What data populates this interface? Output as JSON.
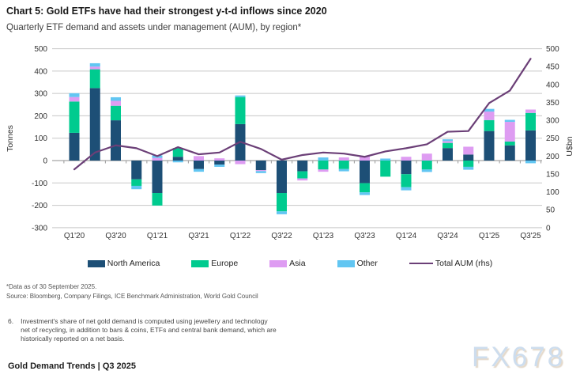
{
  "header": {
    "title": "Chart 5: Gold ETFs have had their strongest y-t-d inflows since 2020",
    "subtitle": "Quarterly ETF demand and assets under management (AUM), by region*"
  },
  "chart_data": {
    "type": "bar",
    "stacked": true,
    "grid": true,
    "legend_position": "bottom",
    "categories": [
      "Q1'20",
      "Q2'20",
      "Q3'20",
      "Q4'20",
      "Q1'21",
      "Q2'21",
      "Q3'21",
      "Q4'21",
      "Q1'22",
      "Q2'22",
      "Q3'22",
      "Q4'22",
      "Q1'23",
      "Q2'23",
      "Q3'23",
      "Q4'23",
      "Q1'24",
      "Q2'24",
      "Q3'24",
      "Q4'24",
      "Q1'25",
      "Q2'25",
      "Q3'25"
    ],
    "x_tick_labels": [
      "Q1'20",
      "Q3'20",
      "Q1'21",
      "Q3'21",
      "Q1'22",
      "Q3'22",
      "Q1'23",
      "Q3'23",
      "Q1'24",
      "Q3'24",
      "Q1'25",
      "Q3'25"
    ],
    "series": [
      {
        "name": "North America",
        "color": "#1d4f76",
        "values": [
          124,
          324,
          180,
          -84,
          -145,
          17,
          -38,
          -18,
          163,
          -43,
          -145,
          -48,
          0,
          0,
          -101,
          0,
          -61,
          0,
          56,
          27,
          132,
          68,
          135
        ]
      },
      {
        "name": "Europe",
        "color": "#00cb8f",
        "values": [
          140,
          84,
          65,
          -29,
          -56,
          39,
          0,
          0,
          121,
          0,
          -82,
          -32,
          -40,
          -38,
          -41,
          -72,
          -58,
          -40,
          23,
          -28,
          49,
          17,
          78
        ]
      },
      {
        "name": "Asia",
        "color": "#de9cf2",
        "values": [
          20,
          12,
          22,
          0,
          12,
          0,
          20,
          10,
          -16,
          -4,
          0,
          -9,
          -10,
          14,
          19,
          0,
          17,
          31,
          8,
          35,
          38,
          88,
          15
        ]
      },
      {
        "name": "Other",
        "color": "#62c6f2",
        "values": [
          17,
          15,
          16,
          -15,
          11,
          -8,
          -12,
          -10,
          7,
          -9,
          -13,
          0,
          14,
          -10,
          -12,
          9,
          -14,
          -11,
          8,
          -13,
          12,
          9,
          -12
        ]
      }
    ],
    "line_series": {
      "name": "Total AUM (rhs)",
      "color": "#6b3f77",
      "axis": "right",
      "values": [
        163,
        210,
        230,
        222,
        200,
        225,
        205,
        210,
        240,
        220,
        190,
        203,
        210,
        207,
        198,
        213,
        222,
        233,
        268,
        270,
        348,
        383,
        472
      ]
    },
    "left_axis": {
      "label": "Tonnes",
      "min": -300,
      "max": 500,
      "step": 100
    },
    "right_axis": {
      "label": "U$bn",
      "min": 0,
      "max": 500,
      "step": 50
    },
    "gridline_color": "#c7c7c7",
    "zero_line_color": "#8f8f8f"
  },
  "legend": {
    "items": [
      {
        "label": "North America",
        "color": "#1d4f76",
        "type": "swatch"
      },
      {
        "label": "Europe",
        "color": "#00cb8f",
        "type": "swatch"
      },
      {
        "label": "Asia",
        "color": "#de9cf2",
        "type": "swatch"
      },
      {
        "label": "Other",
        "color": "#62c6f2",
        "type": "swatch"
      },
      {
        "label": "Total AUM (rhs)",
        "color": "#6b3f77",
        "type": "line"
      }
    ]
  },
  "footnotes": {
    "data_note": "*Data as of 30 September 2025.",
    "source": "Source: Bloomberg, Company Filings, ICE Benchmark Administration, World Gold Council"
  },
  "footnote_6": {
    "number": "6.",
    "lines": [
      "Investment's share of net gold demand is computed using jewellery and technology",
      "net of recycling, in addition to bars & coins, ETFs and central bank demand, which are",
      "historically reported on a net basis."
    ]
  },
  "footer": {
    "text": "Gold Demand Trends | Q3 2025"
  },
  "watermark": {
    "text": "FX678"
  }
}
